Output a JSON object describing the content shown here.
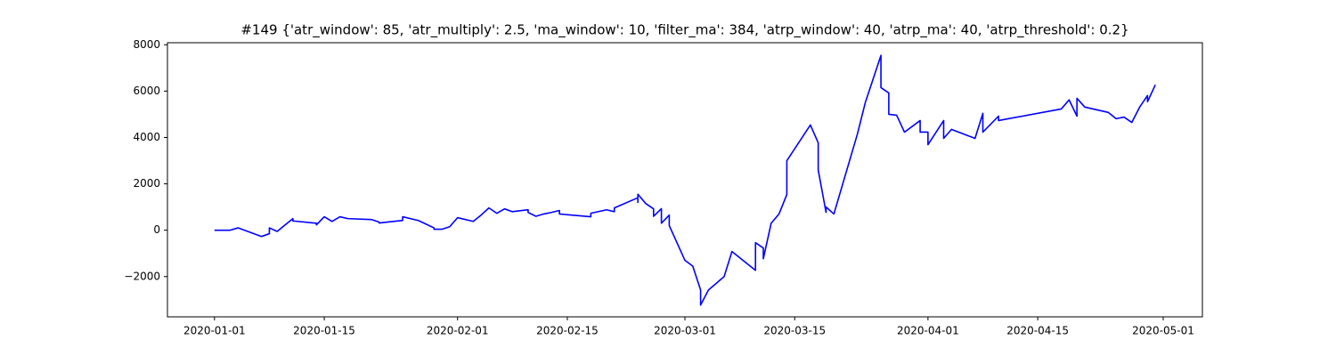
{
  "chart_data": {
    "type": "line",
    "title": "#149 {'atr_window': 85, 'atr_multiply': 2.5, 'ma_window': 10, 'filter_ma': 384, 'atrp_window': 40, 'atrp_ma': 40, 'atrp_threshold': 0.2}",
    "color": "#0000ff",
    "x": [
      "2020-01-01",
      "2020-01-03",
      "2020-01-04",
      "2020-01-07",
      "2020-01-08",
      "2020-01-08",
      "2020-01-09",
      "2020-01-11",
      "2020-01-11",
      "2020-01-14",
      "2020-01-14",
      "2020-01-15",
      "2020-01-16",
      "2020-01-17",
      "2020-01-18",
      "2020-01-21",
      "2020-01-22",
      "2020-01-22",
      "2020-01-23",
      "2020-01-25",
      "2020-01-25",
      "2020-01-27",
      "2020-01-29",
      "2020-01-29",
      "2020-01-30",
      "2020-01-31",
      "2020-02-01",
      "2020-02-03",
      "2020-02-04",
      "2020-02-05",
      "2020-02-06",
      "2020-02-07",
      "2020-02-08",
      "2020-02-10",
      "2020-02-10",
      "2020-02-11",
      "2020-02-12",
      "2020-02-13",
      "2020-02-14",
      "2020-02-14",
      "2020-02-18",
      "2020-02-18",
      "2020-02-20",
      "2020-02-21",
      "2020-02-21",
      "2020-02-24",
      "2020-02-24",
      "2020-02-24",
      "2020-02-25",
      "2020-02-26",
      "2020-02-26",
      "2020-02-27",
      "2020-02-27",
      "2020-02-28",
      "2020-02-28",
      "2020-03-01",
      "2020-03-02",
      "2020-03-03",
      "2020-03-03",
      "2020-03-04",
      "2020-03-06",
      "2020-03-07",
      "2020-03-10",
      "2020-03-10",
      "2020-03-11",
      "2020-03-11",
      "2020-03-12",
      "2020-03-13",
      "2020-03-14",
      "2020-03-14",
      "2020-03-17",
      "2020-03-18",
      "2020-03-18",
      "2020-03-19",
      "2020-03-19",
      "2020-03-20",
      "2020-03-21",
      "2020-03-23",
      "2020-03-24",
      "2020-03-26",
      "2020-03-26",
      "2020-03-27",
      "2020-03-27",
      "2020-03-28",
      "2020-03-29",
      "2020-03-31",
      "2020-03-31",
      "2020-04-01",
      "2020-04-01",
      "2020-04-03",
      "2020-04-03",
      "2020-04-04",
      "2020-04-07",
      "2020-04-08",
      "2020-04-08",
      "2020-04-10",
      "2020-04-10",
      "2020-04-18",
      "2020-04-19",
      "2020-04-20",
      "2020-04-20",
      "2020-04-21",
      "2020-04-24",
      "2020-04-25",
      "2020-04-26",
      "2020-04-27",
      "2020-04-28",
      "2020-04-29",
      "2020-04-29",
      "2020-04-30"
    ],
    "values": [
      0,
      0,
      100,
      -270,
      -150,
      100,
      -50,
      500,
      400,
      300,
      230,
      580,
      380,
      580,
      500,
      460,
      350,
      310,
      350,
      420,
      580,
      420,
      100,
      40,
      40,
      150,
      540,
      380,
      650,
      960,
      730,
      920,
      800,
      880,
      770,
      600,
      700,
      770,
      850,
      700,
      580,
      730,
      880,
      800,
      960,
      1400,
      1200,
      1550,
      1150,
      920,
      600,
      930,
      300,
      650,
      200,
      -1300,
      -1550,
      -2580,
      -3230,
      -2580,
      -2000,
      -920,
      -1730,
      -540,
      -770,
      -1230,
      300,
      700,
      1540,
      3000,
      4540,
      3770,
      2600,
      770,
      1000,
      700,
      1850,
      4150,
      5500,
      7540,
      6150,
      5920,
      5000,
      4960,
      4230,
      4730,
      4230,
      4230,
      3690,
      4730,
      3960,
      4350,
      3960,
      5040,
      4230,
      4920,
      4730,
      5230,
      5620,
      4920,
      5690,
      5310,
      5080,
      4810,
      4880,
      4650,
      5310,
      5810,
      5540,
      6270
    ],
    "xlim": [
      "2019-12-26",
      "2020-05-06"
    ],
    "xticks": [
      "2020-01-01",
      "2020-01-15",
      "2020-02-01",
      "2020-02-15",
      "2020-03-01",
      "2020-03-15",
      "2020-04-01",
      "2020-04-15",
      "2020-05-01"
    ],
    "ylim": [
      -3737,
      8087
    ],
    "yticks": [
      {
        "value": -2000,
        "label": "−2000"
      },
      0,
      2000,
      4000,
      6000,
      8000
    ]
  }
}
